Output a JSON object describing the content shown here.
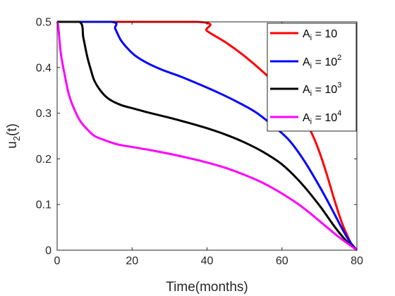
{
  "chart_data": {
    "type": "line",
    "xlabel": "Time(months)",
    "ylabel": {
      "base": "u",
      "sub": "2",
      "suffix": "(t)"
    },
    "xlim": [
      0,
      80
    ],
    "ylim": [
      0,
      0.5
    ],
    "xticks": [
      0,
      20,
      40,
      60,
      80
    ],
    "yticks": [
      0,
      0.1,
      0.2,
      0.3,
      0.4,
      0.5
    ],
    "xtick_labels": [
      "0",
      "20",
      "40",
      "60",
      "80"
    ],
    "ytick_labels": [
      "0",
      "0.1",
      "0.2",
      "0.3",
      "0.4",
      "0.5"
    ],
    "grid": false,
    "legend_position": "top-right",
    "series": [
      {
        "legend": {
          "base": "A",
          "sub": "i",
          "eq": " = 10",
          "sup": ""
        },
        "color": "#ff0000",
        "x": [
          0,
          37.5,
          40,
          45,
          50,
          55,
          60,
          65,
          68,
          70,
          72,
          74,
          76,
          78,
          79,
          80
        ],
        "y": [
          0.5,
          0.5,
          0.48,
          0.455,
          0.425,
          0.39,
          0.35,
          0.3,
          0.255,
          0.215,
          0.165,
          0.11,
          0.06,
          0.022,
          0.008,
          0
        ]
      },
      {
        "legend": {
          "base": "A",
          "sub": "i",
          "eq": " = 10",
          "sup": "2"
        },
        "color": "#0000ff",
        "x": [
          0,
          14.5,
          15.5,
          17,
          19,
          21,
          24,
          28,
          33,
          38,
          43,
          48,
          53,
          58,
          62,
          66,
          70,
          73,
          76,
          78,
          80
        ],
        "y": [
          0.5,
          0.5,
          0.485,
          0.46,
          0.44,
          0.425,
          0.41,
          0.395,
          0.38,
          0.363,
          0.345,
          0.325,
          0.302,
          0.27,
          0.24,
          0.195,
          0.14,
          0.095,
          0.048,
          0.02,
          0
        ]
      },
      {
        "legend": {
          "base": "A",
          "sub": "i",
          "eq": " = 10",
          "sup": "3"
        },
        "color": "#000000",
        "x": [
          0,
          6,
          7,
          8,
          9,
          10,
          12,
          14,
          17,
          20,
          25,
          30,
          35,
          40,
          45,
          50,
          55,
          60,
          65,
          70,
          74,
          77,
          80
        ],
        "y": [
          0.5,
          0.5,
          0.465,
          0.425,
          0.395,
          0.37,
          0.345,
          0.33,
          0.318,
          0.311,
          0.3,
          0.29,
          0.279,
          0.267,
          0.253,
          0.236,
          0.215,
          0.188,
          0.148,
          0.098,
          0.052,
          0.022,
          0
        ]
      },
      {
        "legend": {
          "base": "A",
          "sub": "i",
          "eq": " = 10",
          "sup": "4"
        },
        "color": "#ff00ff",
        "x": [
          0,
          0.3,
          1,
          2,
          3,
          4,
          6,
          8,
          10,
          13,
          16,
          20,
          25,
          30,
          35,
          40,
          45,
          50,
          55,
          60,
          65,
          70,
          75,
          80
        ],
        "y": [
          0.5,
          0.49,
          0.43,
          0.385,
          0.345,
          0.32,
          0.285,
          0.265,
          0.25,
          0.24,
          0.232,
          0.226,
          0.219,
          0.211,
          0.202,
          0.192,
          0.18,
          0.165,
          0.147,
          0.124,
          0.097,
          0.064,
          0.03,
          0
        ]
      }
    ]
  }
}
